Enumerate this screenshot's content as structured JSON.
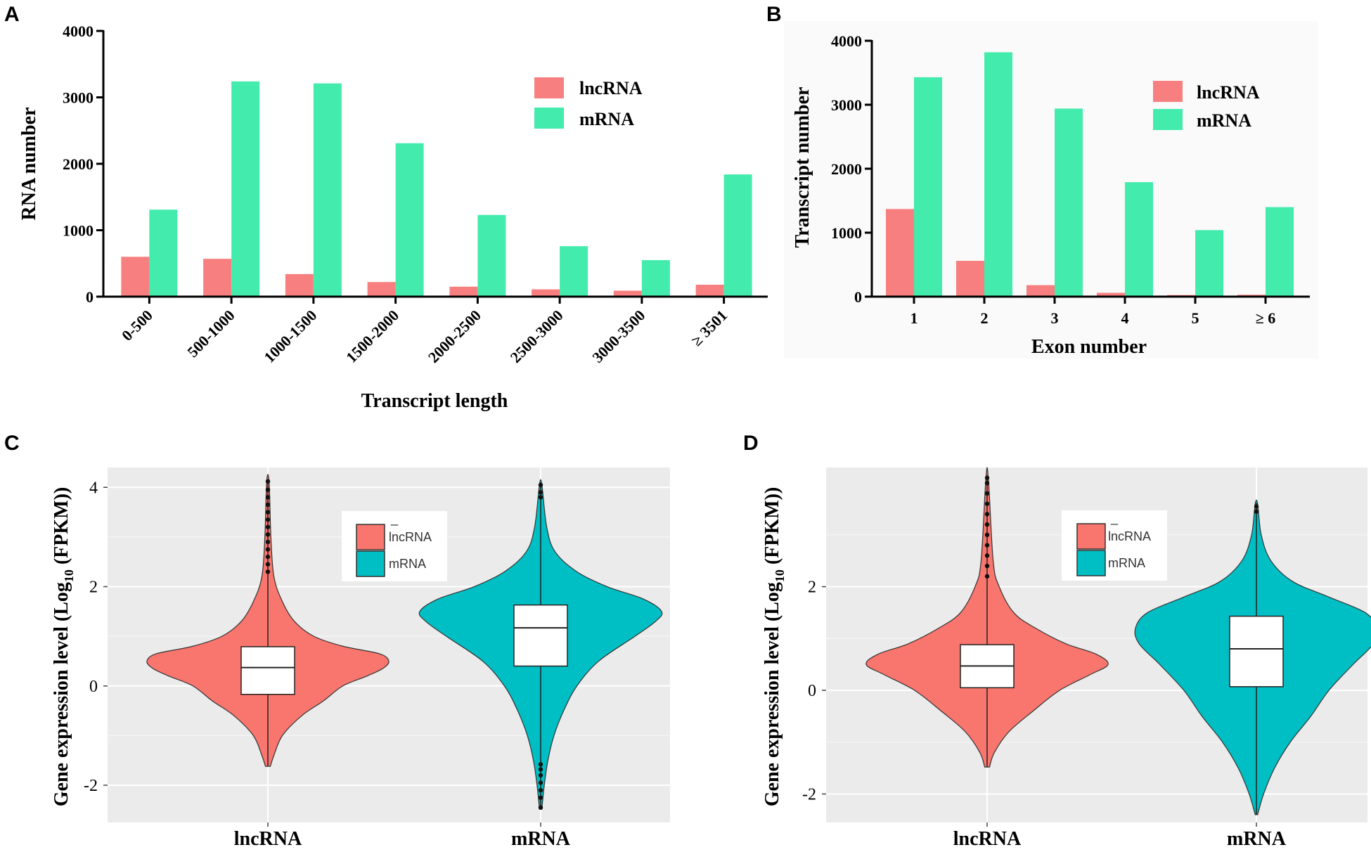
{
  "figure": {
    "panel_labels": [
      "A",
      "B",
      "C",
      "D"
    ]
  },
  "colors": {
    "lnc_bar": "#f87f7f",
    "m_bar": "#43ecad",
    "lnc_violin": "#f8766d",
    "m_violin": "#00bfc4",
    "panel_bg": "#ebebeb"
  },
  "chart_data": [
    {
      "type": "bar",
      "panel": "A",
      "categories": [
        "0-500",
        "500-1000",
        "1000-1500",
        "1500-2000",
        "2000-2500",
        "2500-3000",
        "3000-3500",
        "≥ 3501"
      ],
      "series": [
        {
          "name": "lncRNA",
          "values": [
            600,
            570,
            340,
            220,
            150,
            110,
            90,
            180
          ]
        },
        {
          "name": "mRNA",
          "values": [
            1310,
            3240,
            3210,
            2310,
            1230,
            760,
            550,
            1840
          ]
        }
      ],
      "xlabel": "Transcript length",
      "ylabel": "RNA number",
      "ylim": [
        0,
        4000
      ],
      "yticks": [
        "0",
        "1000",
        "2000",
        "3000",
        "4000"
      ],
      "legend": [
        "lncRNA",
        "mRNA"
      ],
      "legend_position": "top-right"
    },
    {
      "type": "bar",
      "panel": "B",
      "categories": [
        "1",
        "2",
        "3",
        "4",
        "5",
        "≥ 6"
      ],
      "series": [
        {
          "name": "lncRNA",
          "values": [
            1370,
            560,
            180,
            60,
            25,
            30
          ]
        },
        {
          "name": "mRNA",
          "values": [
            3430,
            3820,
            2940,
            1790,
            1040,
            1400
          ]
        }
      ],
      "xlabel": "Exon number",
      "ylabel": "Transcript number",
      "ylim": [
        0,
        4000
      ],
      "yticks": [
        "0",
        "1000",
        "2000",
        "3000",
        "4000"
      ],
      "legend": [
        "lncRNA",
        "mRNA"
      ],
      "legend_position": "top-right"
    },
    {
      "type": "violin",
      "panel": "C",
      "categories": [
        "lncRNA",
        "mRNA"
      ],
      "ylabel_main": "Gene expression level (Log",
      "ylabel_sub": "10",
      "ylabel_end": " (FPKM))",
      "ylim": [
        -2.75,
        4.4
      ],
      "yticks": [
        {
          "value": -2,
          "label": "-2"
        },
        {
          "value": 0,
          "label": "0"
        },
        {
          "value": 2,
          "label": "2"
        },
        {
          "value": 4,
          "label": "4"
        }
      ],
      "legend": [
        "lncRNA",
        "mRNA"
      ],
      "legend_title": "_",
      "series": [
        {
          "name": "lncRNA",
          "whisker": [
            -1.62,
            4.12
          ],
          "box": [
            -0.17,
            0.37,
            0.79
          ],
          "outliers": [
            2.3,
            2.45,
            2.6,
            2.75,
            2.9,
            3.05,
            3.2,
            3.35,
            3.5,
            3.65,
            3.8,
            3.95,
            4.12
          ],
          "density": [
            [
              -1.62,
              0.02
            ],
            [
              -1.4,
              0.05
            ],
            [
              -1.0,
              0.12
            ],
            [
              -0.6,
              0.28
            ],
            [
              -0.3,
              0.46
            ],
            [
              0.0,
              0.62
            ],
            [
              0.2,
              0.82
            ],
            [
              0.35,
              0.95
            ],
            [
              0.5,
              1.0
            ],
            [
              0.65,
              0.92
            ],
            [
              0.8,
              0.62
            ],
            [
              1.0,
              0.38
            ],
            [
              1.3,
              0.22
            ],
            [
              1.7,
              0.12
            ],
            [
              2.2,
              0.05
            ],
            [
              3.0,
              0.025
            ],
            [
              4.12,
              0.01
            ]
          ]
        },
        {
          "name": "mRNA",
          "whisker": [
            -2.48,
            4.05
          ],
          "box": [
            0.4,
            1.17,
            1.63
          ],
          "outliers": [
            -2.45,
            -2.25,
            -2.1,
            -1.95,
            -1.8,
            -1.68,
            -1.58,
            3.8,
            3.9,
            4.05
          ],
          "density": [
            [
              -2.48,
              0.01
            ],
            [
              -2.0,
              0.03
            ],
            [
              -1.5,
              0.06
            ],
            [
              -1.0,
              0.11
            ],
            [
              -0.5,
              0.19
            ],
            [
              0.0,
              0.3
            ],
            [
              0.5,
              0.48
            ],
            [
              1.0,
              0.78
            ],
            [
              1.3,
              0.95
            ],
            [
              1.5,
              1.0
            ],
            [
              1.75,
              0.85
            ],
            [
              2.0,
              0.55
            ],
            [
              2.3,
              0.3
            ],
            [
              2.7,
              0.12
            ],
            [
              3.2,
              0.05
            ],
            [
              4.05,
              0.01
            ]
          ]
        }
      ]
    },
    {
      "type": "violin",
      "panel": "D",
      "categories": [
        "lncRNA",
        "mRNA"
      ],
      "ylabel_main": "Gene expression level (Log",
      "ylabel_sub": "10",
      "ylabel_end": " (FPKM))",
      "ylim": [
        -2.55,
        4.3
      ],
      "yticks": [
        {
          "value": -2,
          "label": "-2"
        },
        {
          "value": 0,
          "label": "0"
        },
        {
          "value": 2,
          "label": "2"
        }
      ],
      "legend": [
        "lncRNA",
        "mRNA"
      ],
      "legend_title": "_",
      "series": [
        {
          "name": "lncRNA",
          "whisker": [
            -1.48,
            4.1
          ],
          "box": [
            0.05,
            0.47,
            0.88
          ],
          "outliers": [
            2.2,
            2.4,
            2.6,
            2.8,
            3.0,
            3.2,
            3.4,
            3.6,
            3.8,
            4.0,
            4.1
          ],
          "density": [
            [
              -1.48,
              0.02
            ],
            [
              -1.2,
              0.06
            ],
            [
              -0.8,
              0.18
            ],
            [
              -0.4,
              0.38
            ],
            [
              0.0,
              0.6
            ],
            [
              0.3,
              0.85
            ],
            [
              0.5,
              1.0
            ],
            [
              0.7,
              0.9
            ],
            [
              0.9,
              0.65
            ],
            [
              1.2,
              0.4
            ],
            [
              1.5,
              0.22
            ],
            [
              2.0,
              0.1
            ],
            [
              2.5,
              0.05
            ],
            [
              4.1,
              0.01
            ]
          ]
        },
        {
          "name": "mRNA",
          "whisker": [
            -2.4,
            3.62
          ],
          "box": [
            0.07,
            0.8,
            1.43
          ],
          "outliers": [
            3.45,
            3.55
          ],
          "density": [
            [
              -2.4,
              0.01
            ],
            [
              -2.0,
              0.06
            ],
            [
              -1.5,
              0.15
            ],
            [
              -1.0,
              0.28
            ],
            [
              -0.5,
              0.45
            ],
            [
              0.0,
              0.6
            ],
            [
              0.5,
              0.8
            ],
            [
              0.9,
              0.97
            ],
            [
              1.2,
              1.0
            ],
            [
              1.5,
              0.9
            ],
            [
              1.8,
              0.6
            ],
            [
              2.1,
              0.3
            ],
            [
              2.5,
              0.12
            ],
            [
              3.0,
              0.04
            ],
            [
              3.6,
              0.01
            ]
          ]
        }
      ]
    }
  ]
}
